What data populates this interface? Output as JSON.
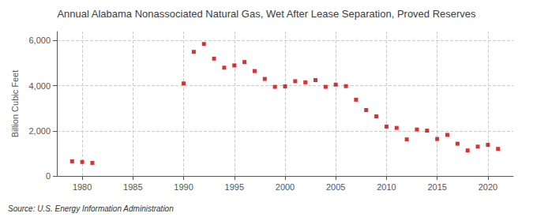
{
  "chart_data": {
    "type": "scatter",
    "title": "Annual Alabama Nonassociated Natural Gas, Wet After Lease Separation, Proved Reserves",
    "ylabel": "Billion Cubic Feet",
    "annotation": "Source: U.S. Energy Information Administration",
    "x": [
      1979,
      1980,
      1981,
      1990,
      1991,
      1992,
      1993,
      1994,
      1995,
      1996,
      1997,
      1998,
      1999,
      2000,
      2001,
      2002,
      2003,
      2004,
      2005,
      2006,
      2007,
      2008,
      2009,
      2010,
      2011,
      2012,
      2013,
      2014,
      2015,
      2016,
      2017,
      2018,
      2019,
      2020,
      2021
    ],
    "values": [
      650,
      620,
      580,
      4100,
      5500,
      5850,
      5200,
      4800,
      4900,
      5050,
      4650,
      4300,
      3950,
      3970,
      4200,
      4150,
      4250,
      3950,
      4050,
      3980,
      3380,
      2920,
      2640,
      2190,
      2130,
      1620,
      2060,
      2010,
      1640,
      1820,
      1430,
      1130,
      1300,
      1380,
      1200
    ],
    "color": "#cc0000",
    "marker": "square",
    "xlim": [
      1977.5,
      2022.5
    ],
    "xticks": [
      1980,
      1985,
      1990,
      1995,
      2000,
      2005,
      2010,
      2015,
      2020
    ],
    "ylim": [
      0,
      6400
    ],
    "yticks": [
      0,
      {
        "value": 2000,
        "label": "2,000"
      },
      {
        "value": 4000,
        "label": "4,000"
      },
      {
        "value": 6000,
        "label": "6,000"
      }
    ],
    "grid": true
  }
}
